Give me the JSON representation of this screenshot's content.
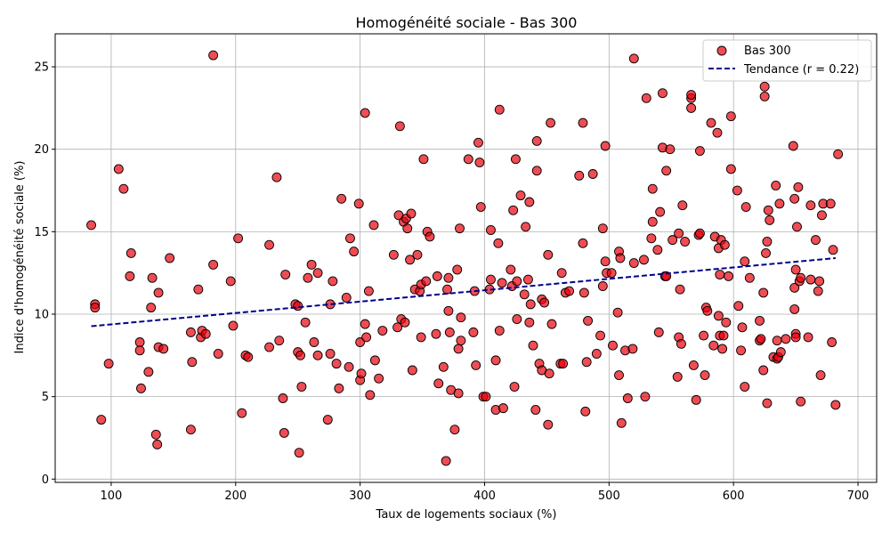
{
  "chart_data": {
    "type": "scatter",
    "title": "Homogénéité sociale - Bas 300",
    "xlabel": "Taux de logements sociaux (%)",
    "ylabel": "Indice d'homogénéité sociale (%)",
    "xlim": [
      55,
      715
    ],
    "ylim": [
      -0.2,
      27
    ],
    "xticks": [
      100,
      200,
      300,
      400,
      500,
      600,
      700
    ],
    "yticks": [
      0,
      5,
      10,
      15,
      20,
      25
    ],
    "grid": true,
    "legend_position": "top-right",
    "colors": {
      "point_fill": "#e8000b",
      "point_edge": "#000000",
      "trend": "#00008b",
      "grid": "#b0b0b0"
    },
    "series": [
      {
        "name": "Bas 300",
        "kind": "scatter",
        "points": [
          [
            84,
            15.4
          ],
          [
            87,
            10.6
          ],
          [
            87,
            10.4
          ],
          [
            92,
            3.6
          ],
          [
            98,
            7.0
          ],
          [
            106,
            18.8
          ],
          [
            110,
            17.6
          ],
          [
            115,
            12.3
          ],
          [
            116,
            13.7
          ],
          [
            123,
            8.3
          ],
          [
            123,
            7.8
          ],
          [
            124,
            5.5
          ],
          [
            130,
            6.5
          ],
          [
            132,
            10.4
          ],
          [
            133,
            12.2
          ],
          [
            136,
            2.7
          ],
          [
            137,
            2.1
          ],
          [
            138,
            8.0
          ],
          [
            138,
            11.3
          ],
          [
            142,
            7.9
          ],
          [
            147,
            13.4
          ],
          [
            164,
            8.9
          ],
          [
            164,
            3.0
          ],
          [
            165,
            7.1
          ],
          [
            170,
            11.5
          ],
          [
            172,
            8.6
          ],
          [
            173,
            9.0
          ],
          [
            176,
            8.8
          ],
          [
            182,
            25.7
          ],
          [
            182,
            13.0
          ],
          [
            186,
            7.6
          ],
          [
            196,
            12.0
          ],
          [
            198,
            9.3
          ],
          [
            202,
            14.6
          ],
          [
            205,
            4.0
          ],
          [
            208,
            7.5
          ],
          [
            210,
            7.4
          ],
          [
            227,
            14.2
          ],
          [
            227,
            8.0
          ],
          [
            233,
            18.3
          ],
          [
            235,
            8.4
          ],
          [
            238,
            4.9
          ],
          [
            239,
            2.8
          ],
          [
            240,
            12.4
          ],
          [
            248,
            10.6
          ],
          [
            250,
            10.5
          ],
          [
            250,
            7.7
          ],
          [
            251,
            1.6
          ],
          [
            252,
            7.5
          ],
          [
            253,
            5.6
          ],
          [
            256,
            9.5
          ],
          [
            258,
            12.2
          ],
          [
            261,
            13.0
          ],
          [
            263,
            8.3
          ],
          [
            266,
            12.5
          ],
          [
            266,
            7.5
          ],
          [
            274,
            3.6
          ],
          [
            276,
            10.6
          ],
          [
            276,
            7.6
          ],
          [
            278,
            12.0
          ],
          [
            281,
            7.0
          ],
          [
            283,
            5.5
          ],
          [
            285,
            17.0
          ],
          [
            289,
            11.0
          ],
          [
            291,
            6.8
          ],
          [
            292,
            14.6
          ],
          [
            295,
            13.8
          ],
          [
            299,
            16.7
          ],
          [
            300,
            6.0
          ],
          [
            300,
            8.3
          ],
          [
            301,
            6.4
          ],
          [
            304,
            22.2
          ],
          [
            304,
            9.4
          ],
          [
            305,
            8.6
          ],
          [
            307,
            11.4
          ],
          [
            308,
            5.1
          ],
          [
            311,
            15.4
          ],
          [
            312,
            7.2
          ],
          [
            315,
            6.1
          ],
          [
            318,
            9.0
          ],
          [
            327,
            13.6
          ],
          [
            330,
            9.2
          ],
          [
            331,
            16.0
          ],
          [
            332,
            21.4
          ],
          [
            333,
            9.7
          ],
          [
            335,
            15.6
          ],
          [
            336,
            9.5
          ],
          [
            337,
            15.8
          ],
          [
            338,
            15.2
          ],
          [
            340,
            13.3
          ],
          [
            341,
            16.1
          ],
          [
            342,
            6.6
          ],
          [
            344,
            11.5
          ],
          [
            346,
            13.6
          ],
          [
            348,
            11.4
          ],
          [
            349,
            11.8
          ],
          [
            349,
            8.6
          ],
          [
            351,
            19.4
          ],
          [
            353,
            12.0
          ],
          [
            354,
            15.0
          ],
          [
            356,
            14.7
          ],
          [
            361,
            8.8
          ],
          [
            362,
            12.3
          ],
          [
            363,
            5.8
          ],
          [
            367,
            6.8
          ],
          [
            369,
            1.1
          ],
          [
            370,
            11.5
          ],
          [
            371,
            10.2
          ],
          [
            371,
            12.2
          ],
          [
            372,
            8.9
          ],
          [
            373,
            5.4
          ],
          [
            376,
            3.0
          ],
          [
            378,
            12.7
          ],
          [
            379,
            7.9
          ],
          [
            379,
            5.2
          ],
          [
            380,
            15.2
          ],
          [
            381,
            8.4
          ],
          [
            381,
            9.8
          ],
          [
            387,
            19.4
          ],
          [
            391,
            8.9
          ],
          [
            392,
            11.4
          ],
          [
            393,
            6.9
          ],
          [
            395,
            20.4
          ],
          [
            396,
            19.2
          ],
          [
            397,
            16.5
          ],
          [
            399,
            5.0
          ],
          [
            401,
            5.0
          ],
          [
            404,
            11.5
          ],
          [
            405,
            12.1
          ],
          [
            405,
            15.1
          ],
          [
            409,
            7.2
          ],
          [
            409,
            4.2
          ],
          [
            411,
            14.3
          ],
          [
            412,
            22.4
          ],
          [
            412,
            9.0
          ],
          [
            414,
            11.9
          ],
          [
            415,
            4.3
          ],
          [
            421,
            12.7
          ],
          [
            422,
            11.7
          ],
          [
            423,
            16.3
          ],
          [
            424,
            5.6
          ],
          [
            425,
            19.4
          ],
          [
            426,
            12.0
          ],
          [
            426,
            9.7
          ],
          [
            429,
            17.2
          ],
          [
            432,
            11.2
          ],
          [
            433,
            15.3
          ],
          [
            435,
            12.1
          ],
          [
            436,
            9.5
          ],
          [
            436,
            16.8
          ],
          [
            437,
            10.6
          ],
          [
            439,
            8.1
          ],
          [
            441,
            4.2
          ],
          [
            442,
            20.5
          ],
          [
            442,
            18.7
          ],
          [
            444,
            7.0
          ],
          [
            446,
            10.9
          ],
          [
            446,
            6.6
          ],
          [
            448,
            10.7
          ],
          [
            451,
            13.6
          ],
          [
            451,
            3.3
          ],
          [
            452,
            6.4
          ],
          [
            453,
            21.6
          ],
          [
            454,
            9.4
          ],
          [
            461,
            7.0
          ],
          [
            462,
            12.5
          ],
          [
            463,
            7.0
          ],
          [
            465,
            11.3
          ],
          [
            468,
            11.4
          ],
          [
            476,
            18.4
          ],
          [
            479,
            14.3
          ],
          [
            479,
            21.6
          ],
          [
            480,
            11.3
          ],
          [
            481,
            4.1
          ],
          [
            482,
            7.1
          ],
          [
            483,
            9.6
          ],
          [
            487,
            18.5
          ],
          [
            490,
            7.6
          ],
          [
            493,
            8.7
          ],
          [
            495,
            11.7
          ],
          [
            495,
            15.2
          ],
          [
            497,
            13.2
          ],
          [
            497,
            20.2
          ],
          [
            498,
            12.5
          ],
          [
            502,
            12.5
          ],
          [
            503,
            8.1
          ],
          [
            507,
            10.1
          ],
          [
            508,
            13.8
          ],
          [
            508,
            6.3
          ],
          [
            509,
            13.4
          ],
          [
            510,
            3.4
          ],
          [
            513,
            7.8
          ],
          [
            515,
            4.9
          ],
          [
            519,
            7.9
          ],
          [
            520,
            25.5
          ],
          [
            520,
            13.1
          ],
          [
            528,
            13.3
          ],
          [
            529,
            5.0
          ],
          [
            530,
            23.1
          ],
          [
            534,
            14.6
          ],
          [
            535,
            17.6
          ],
          [
            535,
            15.6
          ],
          [
            539,
            13.9
          ],
          [
            540,
            8.9
          ],
          [
            541,
            16.2
          ],
          [
            543,
            23.4
          ],
          [
            543,
            20.1
          ],
          [
            545,
            12.3
          ],
          [
            546,
            18.7
          ],
          [
            546,
            12.3
          ],
          [
            549,
            20.0
          ],
          [
            551,
            14.5
          ],
          [
            555,
            6.2
          ],
          [
            556,
            8.6
          ],
          [
            556,
            14.9
          ],
          [
            557,
            11.5
          ],
          [
            558,
            8.2
          ],
          [
            559,
            16.6
          ],
          [
            561,
            14.4
          ],
          [
            566,
            22.5
          ],
          [
            566,
            23.1
          ],
          [
            566,
            23.3
          ],
          [
            568,
            6.9
          ],
          [
            570,
            4.8
          ],
          [
            572,
            14.8
          ],
          [
            573,
            14.9
          ],
          [
            573,
            19.9
          ],
          [
            576,
            8.7
          ],
          [
            577,
            6.3
          ],
          [
            578,
            10.4
          ],
          [
            579,
            10.2
          ],
          [
            582,
            21.6
          ],
          [
            584,
            8.1
          ],
          [
            585,
            14.7
          ],
          [
            587,
            21.0
          ],
          [
            588,
            14.0
          ],
          [
            588,
            9.9
          ],
          [
            589,
            8.7
          ],
          [
            589,
            12.4
          ],
          [
            590,
            14.5
          ],
          [
            591,
            7.9
          ],
          [
            592,
            8.7
          ],
          [
            593,
            14.2
          ],
          [
            594,
            9.5
          ],
          [
            596,
            12.3
          ],
          [
            598,
            22.0
          ],
          [
            598,
            18.8
          ],
          [
            603,
            17.5
          ],
          [
            604,
            10.5
          ],
          [
            606,
            7.8
          ],
          [
            607,
            9.2
          ],
          [
            609,
            13.2
          ],
          [
            609,
            5.6
          ],
          [
            610,
            16.5
          ],
          [
            613,
            12.2
          ],
          [
            621,
            9.6
          ],
          [
            621,
            8.4
          ],
          [
            622,
            8.5
          ],
          [
            624,
            11.3
          ],
          [
            624,
            6.6
          ],
          [
            625,
            23.8
          ],
          [
            625,
            23.2
          ],
          [
            626,
            13.7
          ],
          [
            627,
            14.4
          ],
          [
            627,
            4.6
          ],
          [
            628,
            16.3
          ],
          [
            629,
            15.7
          ],
          [
            632,
            7.4
          ],
          [
            634,
            17.8
          ],
          [
            635,
            7.3
          ],
          [
            635,
            8.4
          ],
          [
            636,
            7.4
          ],
          [
            637,
            16.7
          ],
          [
            638,
            7.7
          ],
          [
            642,
            8.5
          ],
          [
            648,
            20.2
          ],
          [
            649,
            11.6
          ],
          [
            649,
            10.3
          ],
          [
            649,
            17.0
          ],
          [
            650,
            8.8
          ],
          [
            650,
            12.7
          ],
          [
            650,
            8.6
          ],
          [
            651,
            15.3
          ],
          [
            652,
            17.7
          ],
          [
            653,
            12.0
          ],
          [
            654,
            4.7
          ],
          [
            654,
            12.2
          ],
          [
            660,
            8.6
          ],
          [
            662,
            16.6
          ],
          [
            662,
            12.1
          ],
          [
            666,
            14.5
          ],
          [
            668,
            11.4
          ],
          [
            669,
            12.0
          ],
          [
            670,
            6.3
          ],
          [
            671,
            16.0
          ],
          [
            672,
            16.7
          ],
          [
            678,
            16.7
          ],
          [
            679,
            8.3
          ],
          [
            680,
            13.9
          ],
          [
            682,
            4.5
          ],
          [
            684,
            19.7
          ]
        ]
      },
      {
        "name": "Tendance (r = 0.22)",
        "kind": "line",
        "style": "dashed",
        "points": [
          [
            84,
            9.27
          ],
          [
            682,
            13.4
          ]
        ]
      }
    ]
  }
}
